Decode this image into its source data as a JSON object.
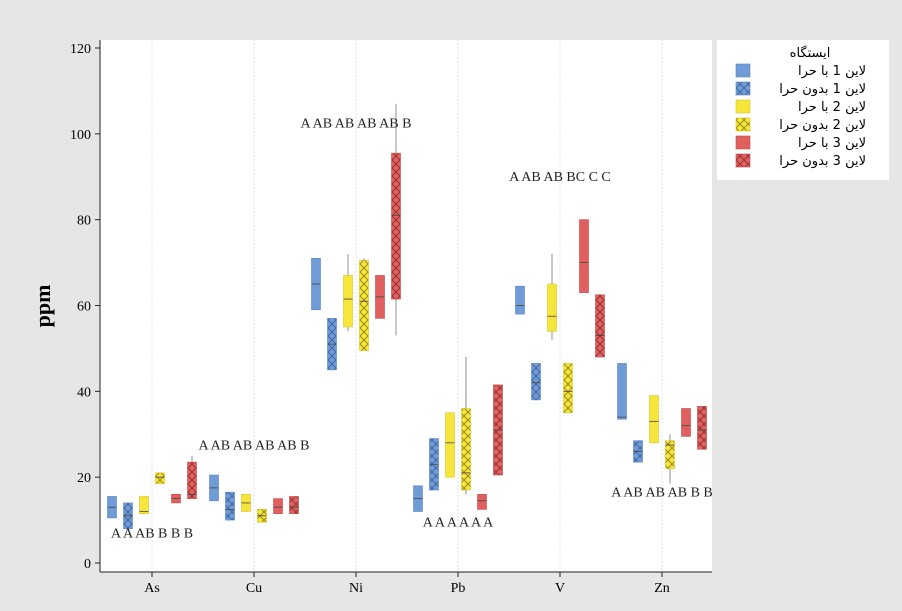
{
  "chart_data": {
    "type": "boxplot",
    "ylabel": "ppm",
    "ylim": [
      0,
      120
    ],
    "yticks": [
      0,
      20,
      40,
      60,
      80,
      100,
      120
    ],
    "grid": "vertical-dotted",
    "legend_placement": "right",
    "legend_title": "ایستگاه",
    "categories": [
      "As",
      "Cu",
      "Ni",
      "Pb",
      "V",
      "Zn"
    ],
    "series": [
      {
        "name": "لاین 1 با حرا",
        "color": "#6f9bd6",
        "hatch": false
      },
      {
        "name": "لاین 1 بدون حرا",
        "color": "#6f9bd6",
        "hatch": true
      },
      {
        "name": "لاین 2 با حرا",
        "color": "#f6e53a",
        "hatch": false
      },
      {
        "name": "لاین 2 بدون حرا",
        "color": "#f6e53a",
        "hatch": true
      },
      {
        "name": "لاین 3 با حرا",
        "color": "#e06060",
        "hatch": false
      },
      {
        "name": "لاین 3 بدون حرا",
        "color": "#e06060",
        "hatch": true
      }
    ],
    "boxes": {
      "As": [
        {
          "q1": 10.5,
          "median": 13.0,
          "q3": 15.5,
          "min": 10.5,
          "max": 15.5
        },
        {
          "q1": 8.0,
          "median": 11.0,
          "q3": 14.0,
          "min": 8.0,
          "max": 14.0
        },
        {
          "q1": 11.5,
          "median": 12.0,
          "q3": 15.5,
          "min": 11.5,
          "max": 15.5
        },
        {
          "q1": 18.5,
          "median": 20.0,
          "q3": 21.0,
          "min": 18.5,
          "max": 21.0
        },
        {
          "q1": 14.0,
          "median": 15.0,
          "q3": 16.0,
          "min": 14.0,
          "max": 16.0
        },
        {
          "q1": 15.0,
          "median": 16.0,
          "q3": 23.5,
          "min": 15.0,
          "max": 25.0
        }
      ],
      "Cu": [
        {
          "q1": 14.5,
          "median": 17.5,
          "q3": 20.5,
          "min": 14.5,
          "max": 20.5
        },
        {
          "q1": 10.0,
          "median": 12.5,
          "q3": 16.5,
          "min": 10.0,
          "max": 16.5
        },
        {
          "q1": 12.0,
          "median": 14.0,
          "q3": 16.0,
          "min": 12.0,
          "max": 16.0
        },
        {
          "q1": 9.5,
          "median": 11.0,
          "q3": 12.5,
          "min": 9.5,
          "max": 12.5
        },
        {
          "q1": 11.5,
          "median": 13.0,
          "q3": 15.0,
          "min": 11.5,
          "max": 15.0
        },
        {
          "q1": 11.5,
          "median": 13.0,
          "q3": 15.5,
          "min": 11.5,
          "max": 15.5
        }
      ],
      "Ni": [
        {
          "q1": 59.0,
          "median": 65.0,
          "q3": 71.0,
          "min": 59.0,
          "max": 71.0
        },
        {
          "q1": 45.0,
          "median": 51.0,
          "q3": 57.0,
          "min": 45.0,
          "max": 57.0
        },
        {
          "q1": 55.0,
          "median": 61.5,
          "q3": 67.0,
          "min": 54.0,
          "max": 72.0
        },
        {
          "q1": 49.5,
          "median": 61.0,
          "q3": 70.5,
          "min": 49.5,
          "max": 71.0
        },
        {
          "q1": 57.0,
          "median": 62.0,
          "q3": 67.0,
          "min": 57.0,
          "max": 67.0
        },
        {
          "q1": 61.5,
          "median": 81.0,
          "q3": 95.5,
          "min": 53.0,
          "max": 107.0
        }
      ],
      "Pb": [
        {
          "q1": 12.0,
          "median": 15.0,
          "q3": 18.0,
          "min": 12.0,
          "max": 18.0
        },
        {
          "q1": 17.0,
          "median": 23.0,
          "q3": 29.0,
          "min": 17.0,
          "max": 29.0
        },
        {
          "q1": 20.0,
          "median": 28.0,
          "q3": 35.0,
          "min": 20.0,
          "max": 35.0
        },
        {
          "q1": 17.0,
          "median": 21.0,
          "q3": 36.0,
          "min": 16.0,
          "max": 48.0
        },
        {
          "q1": 12.5,
          "median": 14.5,
          "q3": 16.0,
          "min": 12.5,
          "max": 16.0
        },
        {
          "q1": 20.5,
          "median": 31.0,
          "q3": 41.5,
          "min": 20.5,
          "max": 41.5
        }
      ],
      "V": [
        {
          "q1": 58.0,
          "median": 60.0,
          "q3": 64.5,
          "min": 58.0,
          "max": 64.5
        },
        {
          "q1": 38.0,
          "median": 42.0,
          "q3": 46.5,
          "min": 38.0,
          "max": 46.5
        },
        {
          "q1": 54.0,
          "median": 57.5,
          "q3": 65.0,
          "min": 52.0,
          "max": 72.0
        },
        {
          "q1": 35.0,
          "median": 40.0,
          "q3": 46.5,
          "min": 35.0,
          "max": 46.5
        },
        {
          "q1": 63.0,
          "median": 70.0,
          "q3": 80.0,
          "min": 63.0,
          "max": 80.0
        },
        {
          "q1": 48.0,
          "median": 53.0,
          "q3": 62.5,
          "min": 48.0,
          "max": 62.5
        }
      ],
      "Zn": [
        {
          "q1": 33.5,
          "median": 34.0,
          "q3": 46.5,
          "min": 33.5,
          "max": 46.5
        },
        {
          "q1": 23.5,
          "median": 26.0,
          "q3": 28.5,
          "min": 23.5,
          "max": 28.5
        },
        {
          "q1": 28.0,
          "median": 33.0,
          "q3": 39.0,
          "min": 28.0,
          "max": 39.0
        },
        {
          "q1": 22.0,
          "median": 27.5,
          "q3": 28.5,
          "min": 18.5,
          "max": 30.0
        },
        {
          "q1": 29.5,
          "median": 32.0,
          "q3": 36.0,
          "min": 29.5,
          "max": 36.0
        },
        {
          "q1": 26.5,
          "median": 31.0,
          "q3": 36.5,
          "min": 26.5,
          "max": 36.5
        }
      ]
    },
    "annotations": [
      {
        "text": "A A AB B B B",
        "category": "As",
        "y": 6
      },
      {
        "text": "A AB AB AB AB B",
        "category": "Cu",
        "y": 26.5
      },
      {
        "text": "A AB AB AB AB B",
        "category": "Ni",
        "y": 101.5
      },
      {
        "text": "A A A A A A",
        "category": "Pb",
        "y": 8.5
      },
      {
        "text": "A AB AB BC C C",
        "category": "V",
        "y": 89
      },
      {
        "text": "A AB AB AB B B",
        "category": "Zn",
        "y": 15.5
      }
    ]
  }
}
